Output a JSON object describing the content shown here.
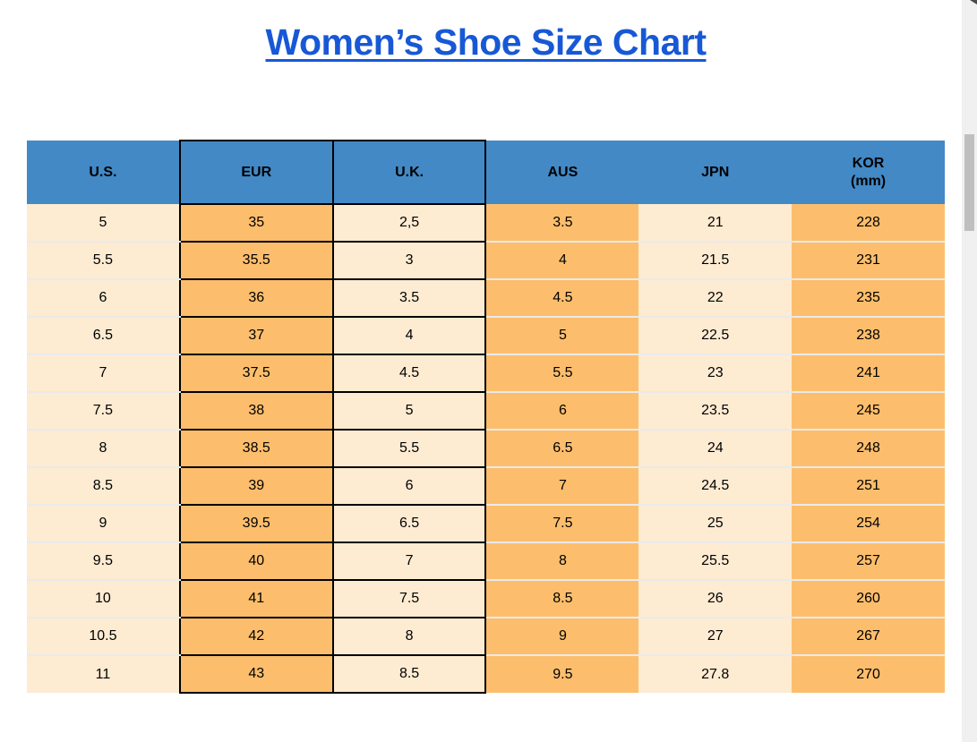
{
  "page": {
    "title": "Women’s Shoe Size Chart"
  },
  "colors": {
    "title_blue": "#1758D6",
    "header_blue": "#4289C6",
    "orange": "#FCBE6C",
    "cream": "#FDEBD2",
    "separator": "#EAEAEA",
    "scrollbar_track": "#F0F0F0",
    "scrollbar_thumb": "#BFBFBF"
  },
  "table": {
    "columns": [
      {
        "id": "us",
        "label": "U.S.",
        "fill": "cream",
        "boxed": false
      },
      {
        "id": "eur",
        "label": "EUR",
        "fill": "orange",
        "boxed": true
      },
      {
        "id": "uk",
        "label": "U.K.",
        "fill": "cream",
        "boxed": true
      },
      {
        "id": "aus",
        "label": "AUS",
        "fill": "orange",
        "boxed": false
      },
      {
        "id": "jpn",
        "label": "JPN",
        "fill": "cream",
        "boxed": false
      },
      {
        "id": "kor",
        "label": "KOR",
        "sublabel": "(mm)",
        "fill": "orange",
        "boxed": false
      }
    ],
    "rows": [
      [
        "5",
        "35",
        "2,5",
        "3.5",
        "21",
        "228"
      ],
      [
        "5.5",
        "35.5",
        "3",
        "4",
        "21.5",
        "231"
      ],
      [
        "6",
        "36",
        "3.5",
        "4.5",
        "22",
        "235"
      ],
      [
        "6.5",
        "37",
        "4",
        "5",
        "22.5",
        "238"
      ],
      [
        "7",
        "37.5",
        "4.5",
        "5.5",
        "23",
        "241"
      ],
      [
        "7.5",
        "38",
        "5",
        "6",
        "23.5",
        "245"
      ],
      [
        "8",
        "38.5",
        "5.5",
        "6.5",
        "24",
        "248"
      ],
      [
        "8.5",
        "39",
        "6",
        "7",
        "24.5",
        "251"
      ],
      [
        "9",
        "39.5",
        "6.5",
        "7.5",
        "25",
        "254"
      ],
      [
        "9.5",
        "40",
        "7",
        "8",
        "25.5",
        "257"
      ],
      [
        "10",
        "41",
        "7.5",
        "8.5",
        "26",
        "260"
      ],
      [
        "10.5",
        "42",
        "8",
        "9",
        "27",
        "267"
      ],
      [
        "11",
        "43",
        "8.5",
        "9.5",
        "27.8",
        "270"
      ]
    ]
  }
}
